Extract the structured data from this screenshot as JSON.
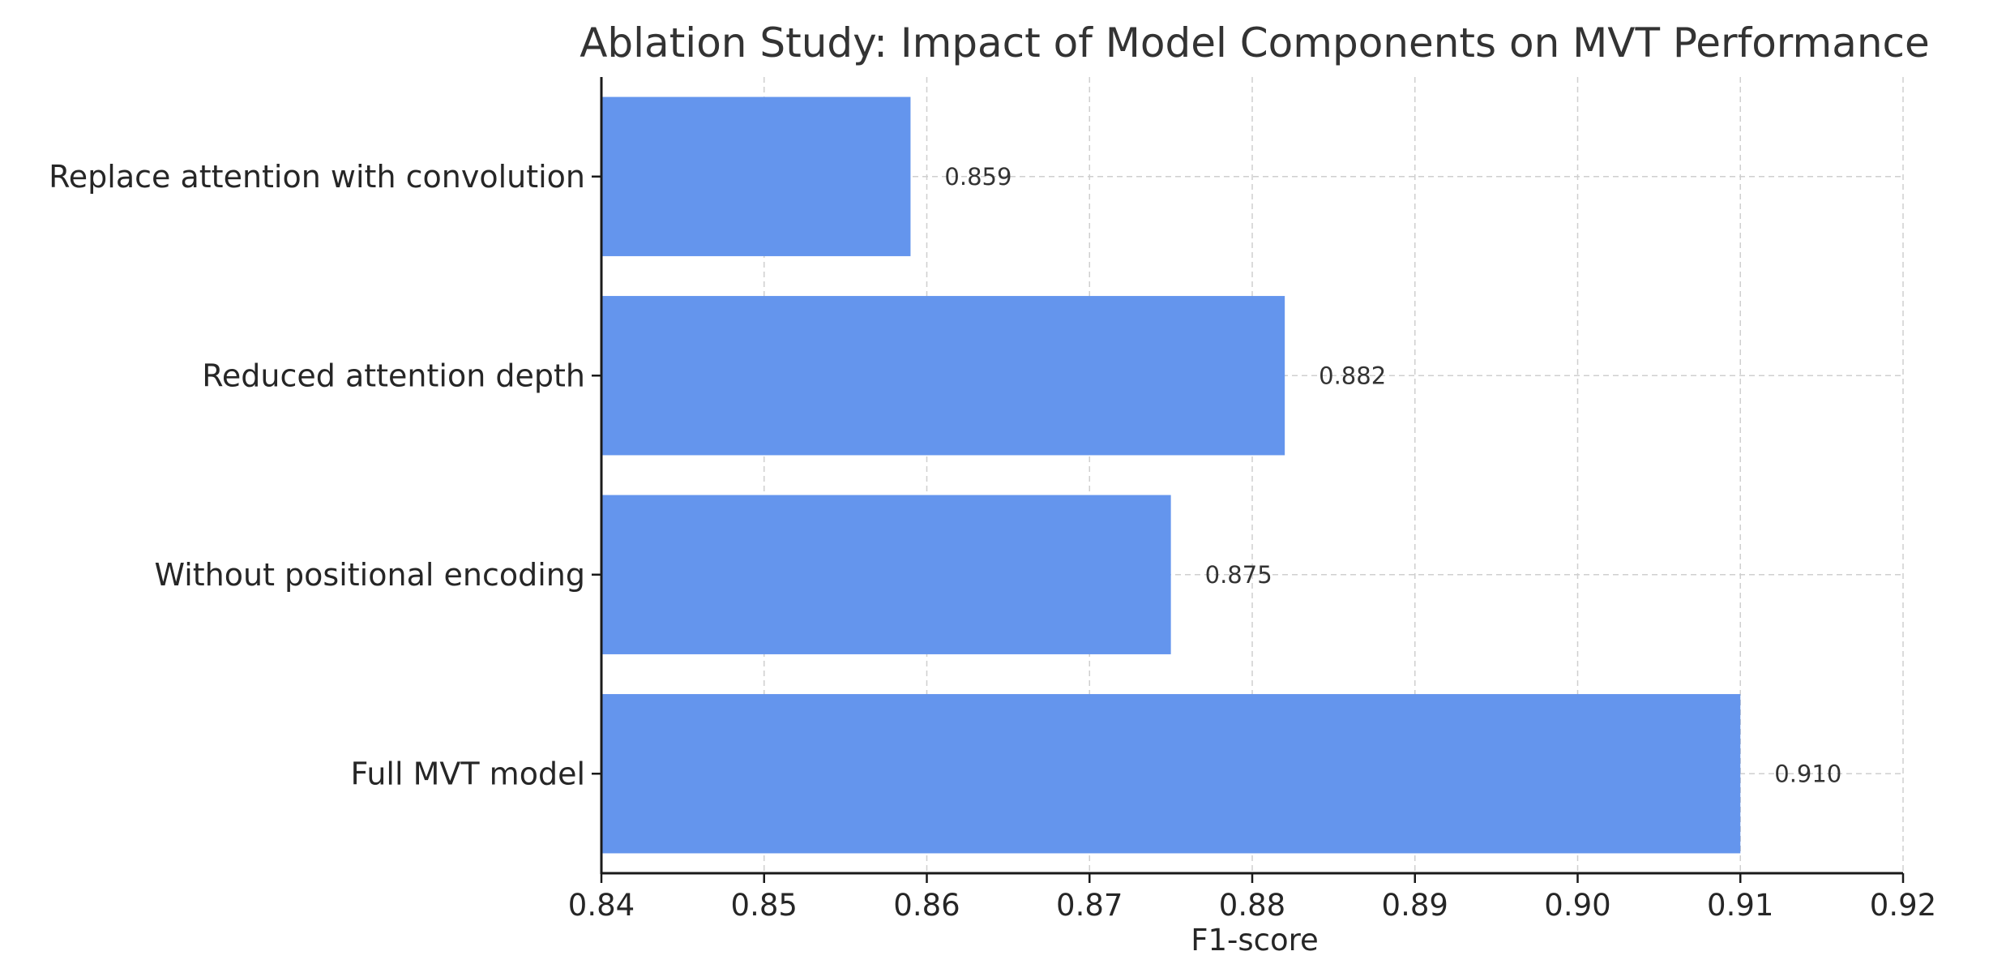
{
  "chart_data": {
    "type": "bar",
    "orientation": "horizontal",
    "title": "Ablation Study: Impact of Model Components on MVT Performance",
    "xlabel": "F1-score",
    "ylabel": "",
    "categories": [
      "Full MVT model",
      "Without positional encoding",
      "Reduced attention depth",
      "Replace attention with convolution"
    ],
    "values": [
      0.91,
      0.875,
      0.882,
      0.859
    ],
    "value_labels": [
      "0.910",
      "0.875",
      "0.882",
      "0.859"
    ],
    "xlim": [
      0.84,
      0.92
    ],
    "xticks": [
      0.84,
      0.85,
      0.86,
      0.87,
      0.88,
      0.89,
      0.9,
      0.91,
      0.92
    ],
    "xtick_labels": [
      "0.84",
      "0.85",
      "0.86",
      "0.87",
      "0.88",
      "0.89",
      "0.90",
      "0.91",
      "0.92"
    ],
    "grid": true,
    "bar_color": "#6495ED",
    "legend": "none"
  }
}
